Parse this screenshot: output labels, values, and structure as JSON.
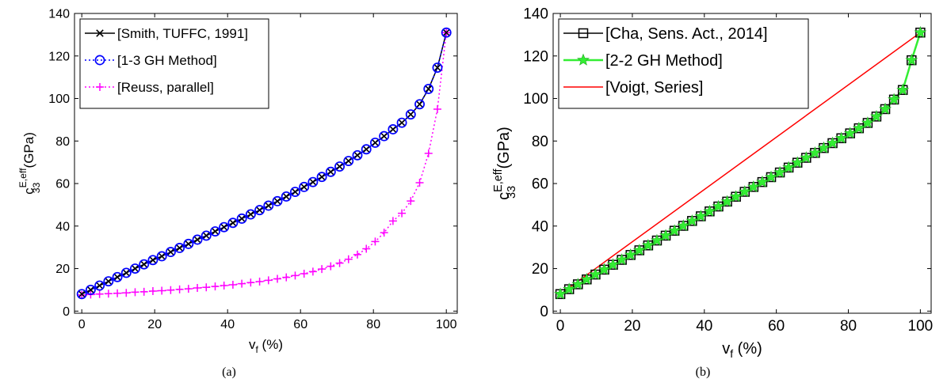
{
  "chart_data": [
    {
      "type": "line",
      "panel": "(a)",
      "xlabel": "v",
      "xlabel_sub": "f",
      "xlabel_unit": "(%)",
      "ylabel": "c",
      "ylabel_sup": "E,eff",
      "ylabel_sub": "33",
      "ylabel_unit": "(GPa)",
      "xlim": [
        -2,
        103
      ],
      "ylim": [
        -1,
        140
      ],
      "xticks": [
        "0",
        "20",
        "40",
        "60",
        "80",
        "100"
      ],
      "yticks": [
        "0",
        "20",
        "40",
        "60",
        "80",
        "100",
        "120",
        "140"
      ],
      "grid": false,
      "legend_position": "top-left",
      "series": [
        {
          "name": "[Smith, TUFFC, 1991]",
          "color": "#000000",
          "line": "solid",
          "marker": "x",
          "x": [
            0,
            2.44,
            4.88,
            7.32,
            9.76,
            12.2,
            14.63,
            17.07,
            19.51,
            21.95,
            24.39,
            26.83,
            29.27,
            31.71,
            34.15,
            36.59,
            39.02,
            41.46,
            43.9,
            46.34,
            48.78,
            51.22,
            53.66,
            56.1,
            58.54,
            60.98,
            63.41,
            65.85,
            68.29,
            70.73,
            73.17,
            75.61,
            78.05,
            80.49,
            82.93,
            85.37,
            87.8,
            90.24,
            92.68,
            95.12,
            97.56,
            100
          ],
          "y": [
            8,
            10,
            12,
            14,
            16,
            18,
            20,
            22,
            24,
            25.8,
            27.8,
            29.7,
            31.6,
            33.6,
            35.5,
            37.5,
            39.5,
            41.5,
            43.5,
            45.5,
            47.5,
            49.6,
            51.7,
            53.9,
            56.1,
            58.4,
            60.7,
            63.1,
            65.5,
            68,
            70.6,
            73.3,
            76.1,
            79.2,
            82.3,
            85.5,
            88.6,
            92.5,
            97.3,
            104.5,
            114.5,
            131
          ]
        },
        {
          "name": "[1-3 GH Method]",
          "color": "#0000ff",
          "line": "dotted",
          "marker": "circle",
          "x": [
            0,
            2.44,
            4.88,
            7.32,
            9.76,
            12.2,
            14.63,
            17.07,
            19.51,
            21.95,
            24.39,
            26.83,
            29.27,
            31.71,
            34.15,
            36.59,
            39.02,
            41.46,
            43.9,
            46.34,
            48.78,
            51.22,
            53.66,
            56.1,
            58.54,
            60.98,
            63.41,
            65.85,
            68.29,
            70.73,
            73.17,
            75.61,
            78.05,
            80.49,
            82.93,
            85.37,
            87.8,
            90.24,
            92.68,
            95.12,
            97.56,
            100
          ],
          "y": [
            8,
            10,
            12,
            14,
            16,
            18,
            20,
            22,
            24,
            25.8,
            27.8,
            29.7,
            31.6,
            33.6,
            35.5,
            37.5,
            39.5,
            41.5,
            43.5,
            45.5,
            47.5,
            49.6,
            51.7,
            53.9,
            56.1,
            58.4,
            60.7,
            63.1,
            65.5,
            68,
            70.6,
            73.3,
            76.1,
            79.2,
            82.3,
            85.5,
            88.6,
            92.5,
            97.3,
            104.5,
            114.5,
            131
          ]
        },
        {
          "name": "[Reuss, parallel]",
          "color": "#ff00ff",
          "line": "dotted",
          "marker": "plus",
          "x": [
            0,
            2.44,
            4.88,
            7.32,
            9.76,
            12.2,
            14.63,
            17.07,
            19.51,
            21.95,
            24.39,
            26.83,
            29.27,
            31.71,
            34.15,
            36.59,
            39.02,
            41.46,
            43.9,
            46.34,
            48.78,
            51.22,
            53.66,
            56.1,
            58.54,
            60.98,
            63.41,
            65.85,
            68.29,
            70.73,
            73.17,
            75.61,
            78.05,
            80.49,
            82.93,
            85.37,
            87.8,
            90.24,
            92.68,
            95.12,
            97.56,
            100
          ],
          "y": [
            7.6,
            7.8,
            8,
            8.2,
            8.4,
            8.6,
            8.9,
            9.1,
            9.4,
            9.6,
            9.9,
            10.2,
            10.5,
            10.9,
            11.2,
            11.6,
            12,
            12.4,
            12.9,
            13.4,
            13.9,
            14.5,
            15.2,
            15.9,
            16.7,
            17.6,
            18.6,
            19.8,
            21.1,
            22.6,
            24.4,
            26.6,
            29.3,
            32.7,
            36.9,
            42.4,
            46,
            51.8,
            60.4,
            74.2,
            95,
            131
          ]
        }
      ]
    },
    {
      "type": "line",
      "panel": "(b)",
      "xlabel": "v",
      "xlabel_sub": "f",
      "xlabel_unit": "(%)",
      "ylabel": "c",
      "ylabel_sup": "E,eff",
      "ylabel_sub": "33",
      "ylabel_unit": "(GPa)",
      "xlim": [
        -2,
        103
      ],
      "ylim": [
        -1,
        140
      ],
      "xticks": [
        "0",
        "20",
        "40",
        "60",
        "80",
        "100"
      ],
      "yticks": [
        "0",
        "20",
        "40",
        "60",
        "80",
        "100",
        "120",
        "140"
      ],
      "grid": false,
      "legend_position": "top-left",
      "series": [
        {
          "name": "[Cha, Sens. Act., 2014]",
          "color": "#000000",
          "line": "solid",
          "marker": "square",
          "x": [
            0,
            2.44,
            4.88,
            7.32,
            9.76,
            12.2,
            14.63,
            17.07,
            19.51,
            21.95,
            24.39,
            26.83,
            29.27,
            31.71,
            34.15,
            36.59,
            39.02,
            41.46,
            43.9,
            46.34,
            48.78,
            51.22,
            53.66,
            56.1,
            58.54,
            60.98,
            63.41,
            65.85,
            68.29,
            70.73,
            73.17,
            75.61,
            78.05,
            80.49,
            82.93,
            85.37,
            87.8,
            90.24,
            92.68,
            95.12,
            97.56,
            100
          ],
          "y": [
            8,
            10.3,
            12.6,
            14.9,
            17.2,
            19.5,
            21.8,
            24.1,
            26.4,
            28.6,
            30.9,
            33.2,
            35.5,
            37.8,
            40.1,
            42.4,
            44.6,
            46.9,
            49.2,
            51.5,
            53.8,
            56.1,
            58.4,
            60.7,
            63,
            65.2,
            67.5,
            69.8,
            72.1,
            74.4,
            76.7,
            79,
            81.3,
            83.6,
            86,
            88.5,
            91.5,
            95,
            99.5,
            104,
            118,
            131
          ]
        },
        {
          "name": "[2-2 GH Method]",
          "color": "#33ee33",
          "line": "solid",
          "marker": "star",
          "x": [
            0,
            2.44,
            4.88,
            7.32,
            9.76,
            12.2,
            14.63,
            17.07,
            19.51,
            21.95,
            24.39,
            26.83,
            29.27,
            31.71,
            34.15,
            36.59,
            39.02,
            41.46,
            43.9,
            46.34,
            48.78,
            51.22,
            53.66,
            56.1,
            58.54,
            60.98,
            63.41,
            65.85,
            68.29,
            70.73,
            73.17,
            75.61,
            78.05,
            80.49,
            82.93,
            85.37,
            87.8,
            90.24,
            92.68,
            95.12,
            97.56,
            100
          ],
          "y": [
            8,
            10.3,
            12.6,
            14.9,
            17.2,
            19.5,
            21.8,
            24.1,
            26.4,
            28.6,
            30.9,
            33.2,
            35.5,
            37.8,
            40.1,
            42.4,
            44.6,
            46.9,
            49.2,
            51.5,
            53.8,
            56.1,
            58.4,
            60.7,
            63,
            65.2,
            67.5,
            69.8,
            72.1,
            74.4,
            76.7,
            79,
            81.3,
            83.6,
            86,
            88.5,
            91.5,
            95,
            99.5,
            104,
            118,
            131
          ]
        },
        {
          "name": "[Voigt, Series]",
          "color": "#ff0000",
          "line": "solid",
          "marker": "none",
          "x": [
            0,
            100
          ],
          "y": [
            8,
            131
          ]
        }
      ]
    }
  ]
}
